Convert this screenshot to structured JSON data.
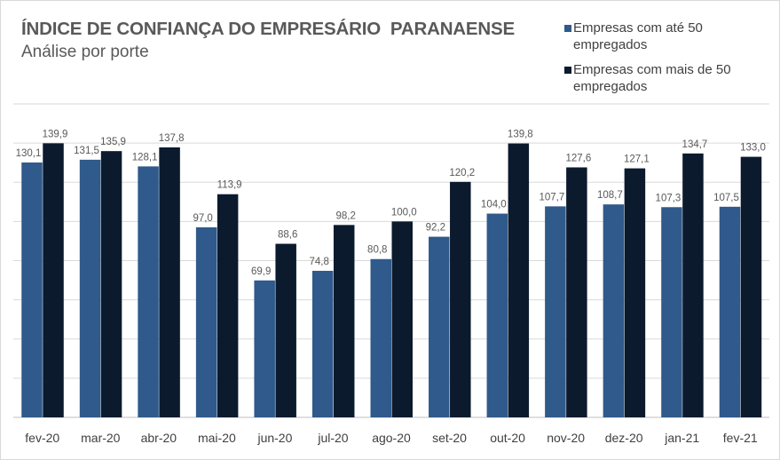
{
  "chart_data": {
    "type": "bar",
    "title": "ÍNDICE DE CONFIANÇA DO EMPRESÁRIO  PARANAENSE",
    "subtitle": "Análise por porte",
    "xlabel": "",
    "ylabel": "",
    "ylim": [
      0,
      160
    ],
    "grid": true,
    "legend_placement": "top-right",
    "categories": [
      "fev-20",
      "mar-20",
      "abr-20",
      "mai-20",
      "jun-20",
      "jul-20",
      "ago-20",
      "set-20",
      "out-20",
      "nov-20",
      "dez-20",
      "jan-21",
      "fev-21"
    ],
    "series": [
      {
        "name": "Empresas com até 50 empregados",
        "color": "#2F5A8B",
        "values": [
          130.1,
          131.5,
          128.1,
          97.0,
          69.9,
          74.8,
          80.8,
          92.2,
          104.0,
          107.7,
          108.7,
          107.3,
          107.5
        ]
      },
      {
        "name": "Empresas com mais de 50 empregados",
        "color": "#0C1A2E",
        "values": [
          139.9,
          135.9,
          137.8,
          113.9,
          88.6,
          98.2,
          100.0,
          120.2,
          139.8,
          127.6,
          127.1,
          134.7,
          133.0
        ]
      }
    ]
  }
}
